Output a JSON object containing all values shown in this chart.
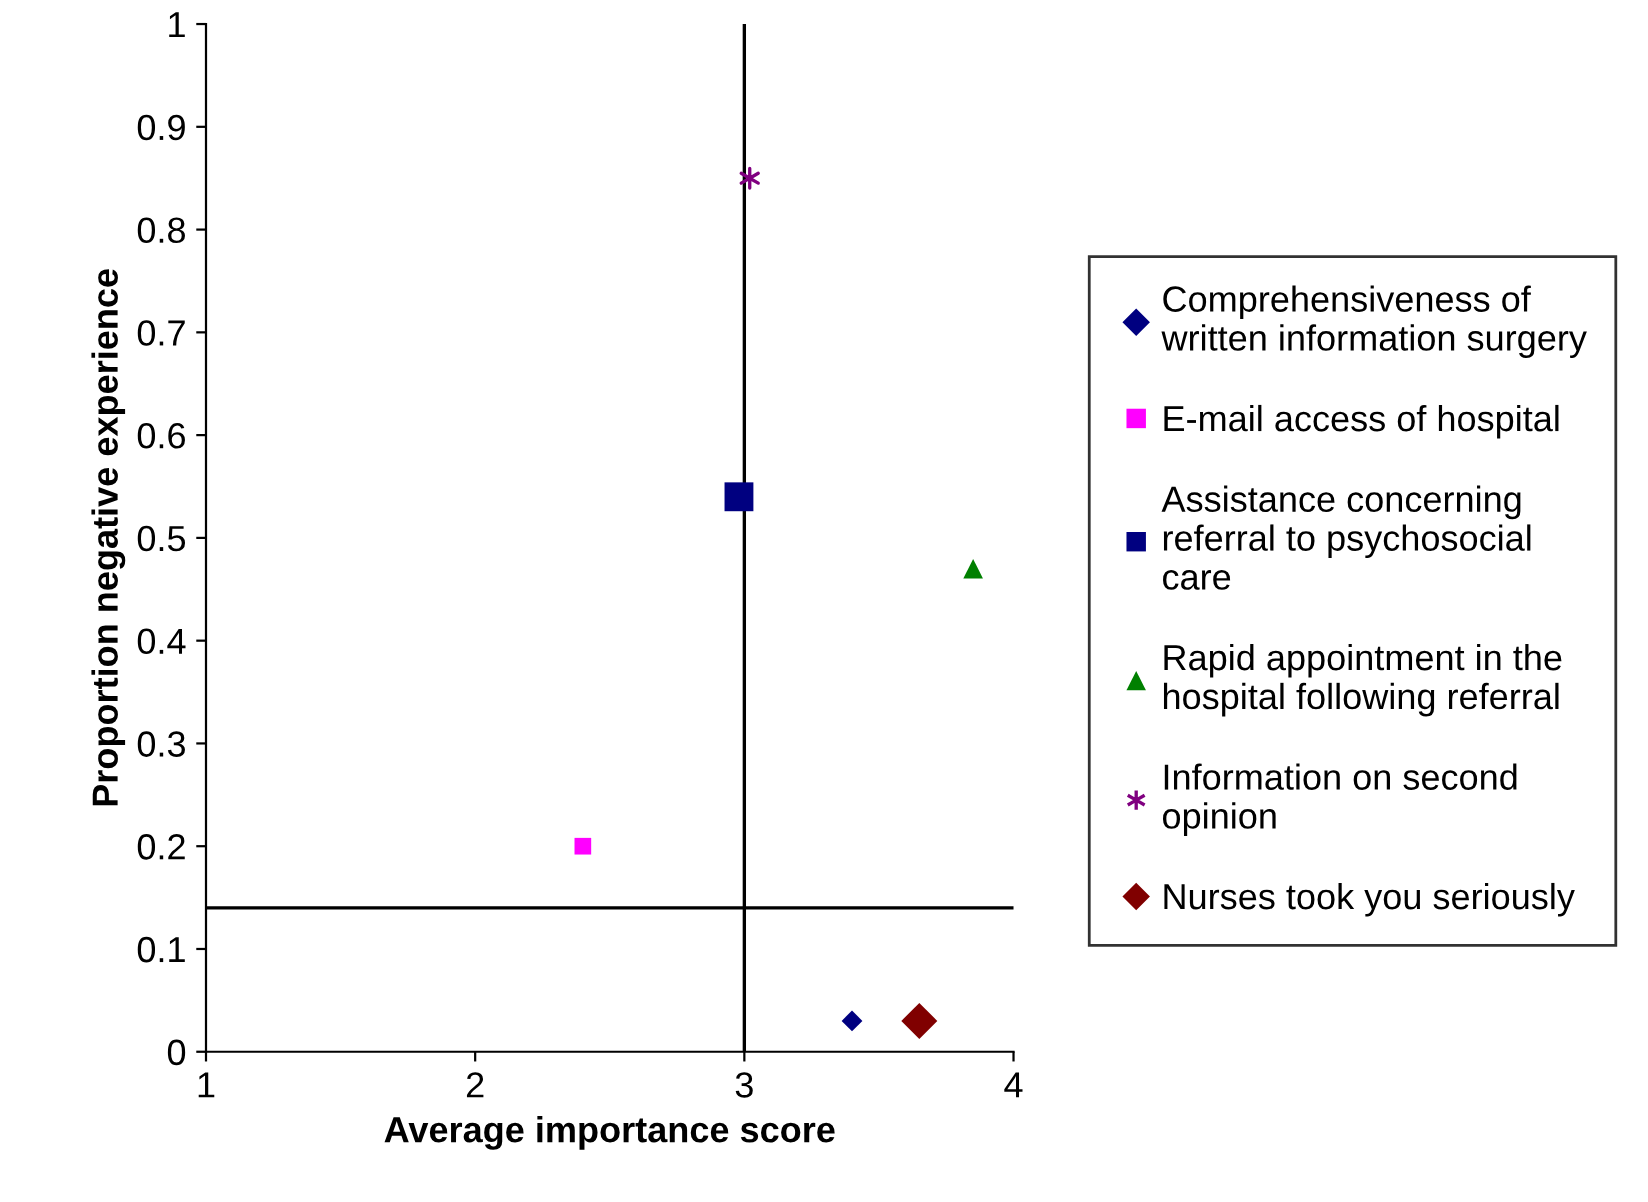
{
  "chart_data": {
    "type": "scatter",
    "xlabel": "Average importance score",
    "ylabel": "Proportion negative experience",
    "xlim": [
      1,
      4
    ],
    "ylim": [
      0,
      1
    ],
    "xticks": [
      1,
      2,
      3,
      4
    ],
    "yticks": [
      0,
      0.1,
      0.2,
      0.3,
      0.4,
      0.5,
      0.6,
      0.7,
      0.8,
      0.9,
      1
    ],
    "grid": false,
    "legend": "right",
    "ref_lines": [
      {
        "axis": "x",
        "value": 3,
        "color": "#000000"
      },
      {
        "axis": "y",
        "value": 0.14,
        "color": "#000000"
      }
    ],
    "series": [
      {
        "name": "Comprehensiveness of written information surgery",
        "color": "#000080",
        "marker": "diamond",
        "x": [
          3.4
        ],
        "values": [
          0.03
        ]
      },
      {
        "name": "E-mail access of hospital",
        "color": "#ff00ff",
        "marker": "square",
        "x": [
          2.4
        ],
        "values": [
          0.2
        ]
      },
      {
        "name": "Assistance concerning referral to psychosocial care",
        "color": "#000080",
        "marker": "square",
        "x": [
          2.98
        ],
        "values": [
          0.54
        ]
      },
      {
        "name": "Rapid appointment in the hospital following referral",
        "color": "#008000",
        "marker": "triangle",
        "x": [
          3.85
        ],
        "values": [
          0.47
        ]
      },
      {
        "name": "Information on second opinion",
        "color": "#800080",
        "marker": "cross",
        "x": [
          3.02
        ],
        "values": [
          0.85
        ]
      },
      {
        "name": "Nurses took you seriously",
        "color": "#800000",
        "marker": "diamond",
        "x": [
          3.65
        ],
        "values": [
          0.03
        ]
      }
    ]
  }
}
